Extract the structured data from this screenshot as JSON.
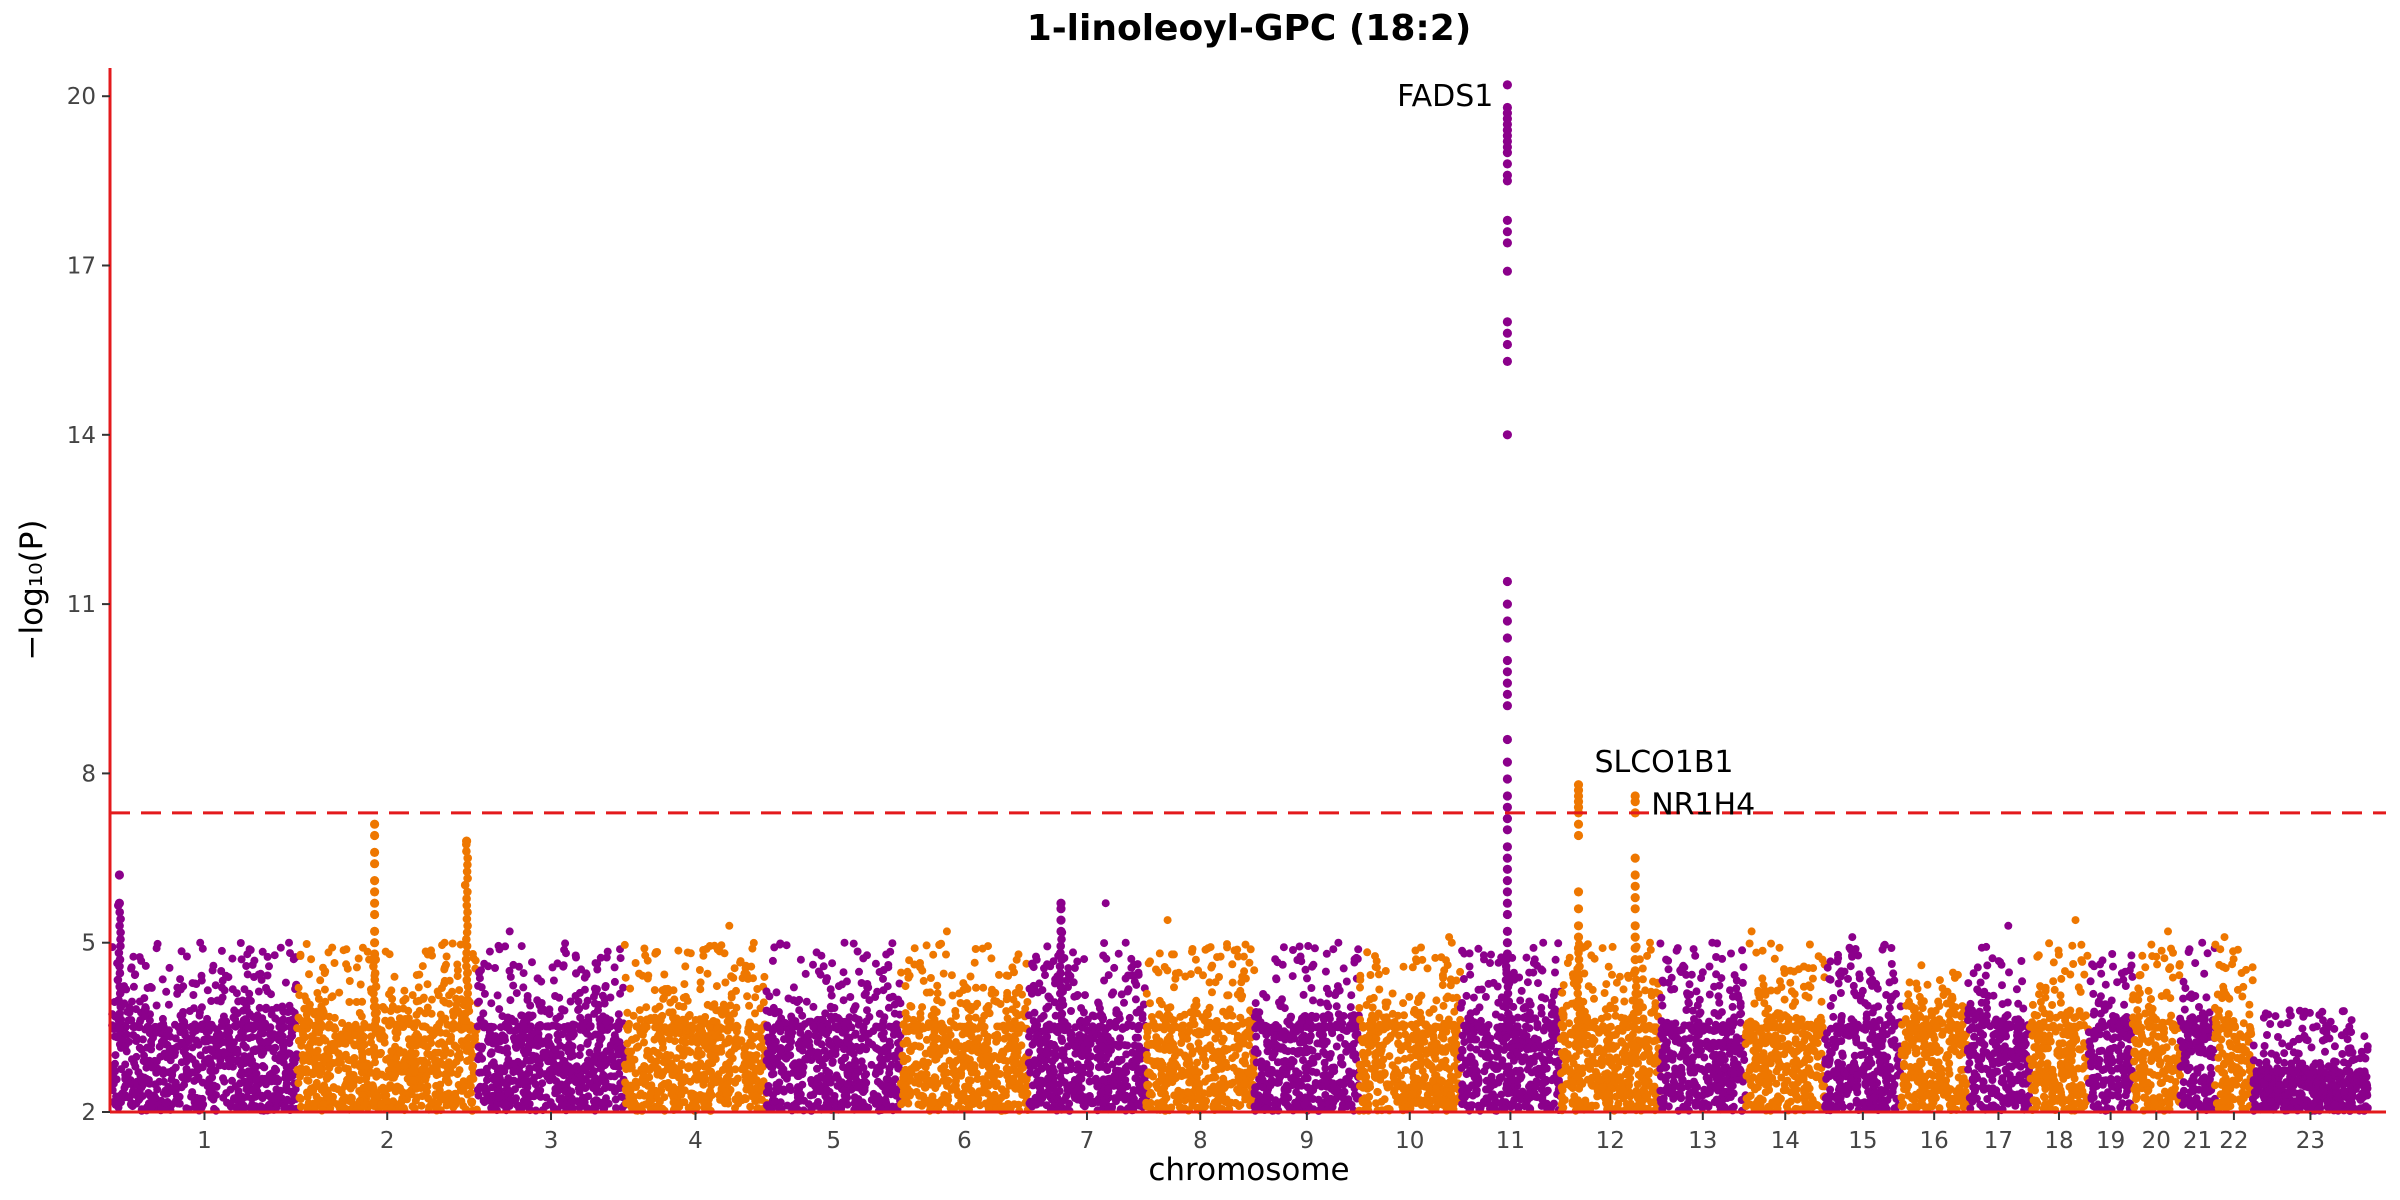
{
  "chart_data": {
    "type": "scatter",
    "title": "1-linoleoyl-GPC (18:2)",
    "xlabel": "chromosome",
    "ylabel": "−log₁₀(P)",
    "ylim": [
      2,
      20.5
    ],
    "y_ticks": [
      2,
      5,
      8,
      11,
      14,
      17,
      20
    ],
    "significance_threshold": 7.3,
    "colors": {
      "odd": "#8B008B",
      "even": "#EE7700",
      "axis": "#E31A1C",
      "threshold": "#E31A1C"
    },
    "chromosomes": [
      {
        "label": "1",
        "width": 249,
        "top": 6.2
      },
      {
        "label": "2",
        "width": 243,
        "top": 7.1
      },
      {
        "label": "3",
        "width": 198,
        "top": 5.2
      },
      {
        "label": "4",
        "width": 191,
        "top": 5.3
      },
      {
        "label": "5",
        "width": 181,
        "top": 5.0
      },
      {
        "label": "6",
        "width": 171,
        "top": 5.2
      },
      {
        "label": "7",
        "width": 159,
        "top": 5.7
      },
      {
        "label": "8",
        "width": 146,
        "top": 5.4
      },
      {
        "label": "9",
        "width": 141,
        "top": 5.0
      },
      {
        "label": "10",
        "width": 136,
        "top": 5.1
      },
      {
        "label": "11",
        "width": 135,
        "top": 20.2
      },
      {
        "label": "12",
        "width": 134,
        "top": 7.8
      },
      {
        "label": "13",
        "width": 115,
        "top": 5.0
      },
      {
        "label": "14",
        "width": 107,
        "top": 5.2
      },
      {
        "label": "15",
        "width": 102,
        "top": 5.1
      },
      {
        "label": "16",
        "width": 90,
        "top": 4.6
      },
      {
        "label": "17",
        "width": 83,
        "top": 5.3
      },
      {
        "label": "18",
        "width": 80,
        "top": 5.4
      },
      {
        "label": "19",
        "width": 59,
        "top": 4.8
      },
      {
        "label": "20",
        "width": 64,
        "top": 5.2
      },
      {
        "label": "21",
        "width": 47,
        "top": 5.0
      },
      {
        "label": "22",
        "width": 51,
        "top": 5.1
      },
      {
        "label": "23",
        "width": 155,
        "top": 3.8
      }
    ],
    "peaks": [
      {
        "chrom": "11",
        "pos": 0.47,
        "values": [
          20.2,
          19.8,
          19.7,
          19.6,
          19.5,
          19.4,
          19.3,
          19.2,
          19.1,
          19.0,
          18.8,
          18.6,
          18.5,
          17.8,
          17.6,
          17.4,
          16.9,
          16.0,
          15.8,
          15.6,
          15.3,
          14.0,
          11.4,
          11.0,
          10.7,
          10.4,
          10.0,
          9.8,
          9.6,
          9.4,
          9.2,
          8.6,
          8.2,
          7.9,
          7.6,
          7.4,
          7.2,
          7.0,
          6.7,
          6.5,
          6.3,
          6.1,
          5.9,
          5.7,
          5.5,
          5.2,
          5.0,
          4.8
        ]
      },
      {
        "chrom": "12",
        "pos": 0.18,
        "values": [
          7.8,
          7.7,
          7.6,
          7.5,
          7.4,
          7.3,
          7.1,
          6.9,
          5.9,
          5.6,
          5.3,
          5.1,
          4.9
        ]
      },
      {
        "chrom": "12",
        "pos": 0.75,
        "values": [
          7.6,
          7.5,
          7.3,
          6.5,
          6.2,
          6.0,
          5.8,
          5.6,
          5.3,
          5.1,
          4.9,
          4.7,
          4.5
        ]
      },
      {
        "chrom": "2",
        "pos": 0.43,
        "values": [
          7.1,
          6.9,
          6.6,
          6.4,
          6.1,
          5.9,
          5.7,
          5.5,
          5.2,
          5.0,
          4.8
        ]
      },
      {
        "chrom": "2",
        "pos": 0.94,
        "values": [
          6.8
        ]
      },
      {
        "chrom": "1",
        "pos": 0.04,
        "values": [
          6.2,
          5.7
        ]
      },
      {
        "chrom": "7",
        "pos": 0.28,
        "values": [
          5.7,
          5.6,
          5.4,
          5.2
        ]
      }
    ],
    "annotations": [
      {
        "text": "FADS1",
        "chrom": "11",
        "y": 20.0,
        "anchor": "end"
      },
      {
        "text": "SLCO1B1",
        "chrom": "12",
        "y": 8.2,
        "anchor": "start"
      },
      {
        "text": "NR1H4",
        "chrom": "12",
        "y": 7.45,
        "anchor": "start"
      }
    ]
  }
}
